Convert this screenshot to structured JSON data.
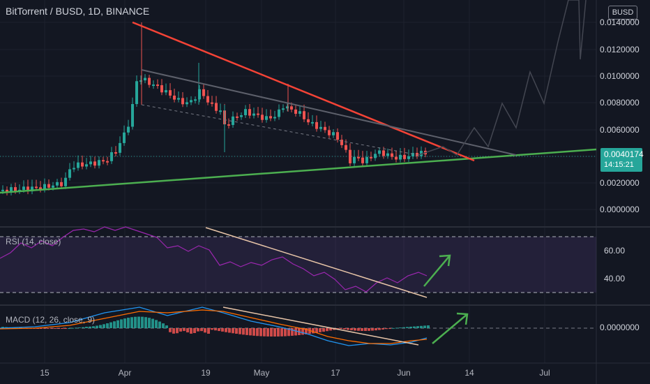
{
  "header": {
    "title": "BitTorrent / BUSD, 1D, BINANCE",
    "currency_badge": "BUSD"
  },
  "price_axis": {
    "ticks": [
      "0.0140000",
      "0.0120000",
      "0.0100000",
      "0.0080000",
      "0.0060000",
      "0.0040000",
      "0.0020000",
      "0.0000000"
    ],
    "current_price": "0.0040174",
    "countdown": "14:15:21"
  },
  "rsi": {
    "label": "RSI (14, close)",
    "ticks": [
      "60.00",
      "40.00"
    ]
  },
  "macd": {
    "label": "MACD (12, 26, close, 9)",
    "tick": "0.0000000"
  },
  "time_axis": {
    "labels": [
      "15",
      "Apr",
      "19",
      "May",
      "17",
      "Jun",
      "14",
      "Jul"
    ]
  },
  "colors": {
    "up": "#26a69a",
    "down": "#ef5350",
    "background": "#131722",
    "trendline_red": "#f44336",
    "trendline_green": "#4caf50",
    "rsi_line": "#9c27b0",
    "macd_line": "#2196f3",
    "signal_line": "#ff6d00"
  }
}
